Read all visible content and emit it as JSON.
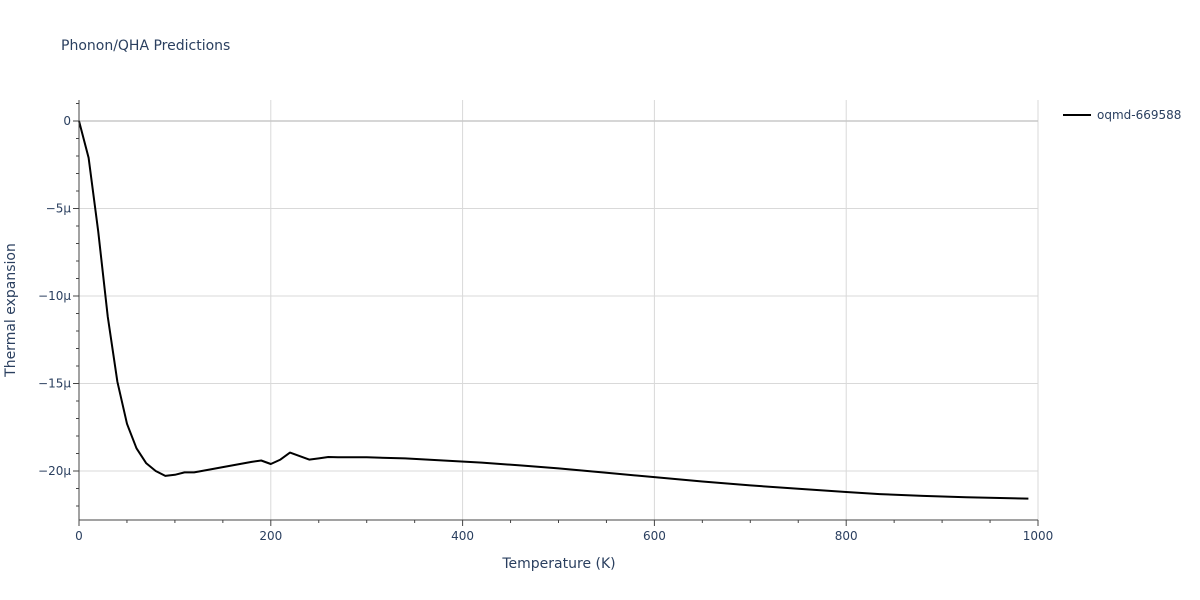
{
  "chart_data": {
    "type": "line",
    "title": "Phonon/QHA Predictions",
    "xlabel": "Temperature (K)",
    "ylabel": "Thermal expansion",
    "xlim": [
      0,
      1000
    ],
    "ylim": [
      -22.8,
      1.2
    ],
    "y_unit_scale": "μ (1e-6)",
    "x_ticks": [
      0,
      200,
      400,
      600,
      800,
      1000
    ],
    "x_tick_labels": [
      "0",
      "200",
      "400",
      "600",
      "800",
      "1000"
    ],
    "y_ticks": [
      0,
      -5,
      -10,
      -15,
      -20
    ],
    "y_tick_labels": [
      "0",
      "−5μ",
      "−10μ",
      "−15μ",
      "−20μ"
    ],
    "grid": true,
    "legend_position": "top-right",
    "series": [
      {
        "name": "oqmd-669588",
        "color": "#000000",
        "x": [
          0,
          10,
          20,
          30,
          40,
          50,
          60,
          70,
          80,
          90,
          100,
          110,
          120,
          130,
          140,
          150,
          160,
          170,
          180,
          190,
          200,
          210,
          220,
          230,
          240,
          250,
          260,
          270,
          280,
          290,
          300,
          340,
          380,
          420,
          460,
          500,
          550,
          600,
          650,
          700,
          750,
          800,
          835,
          880,
          925,
          990
        ],
        "y": [
          0,
          -2.1,
          -6.3,
          -11.2,
          -14.9,
          -17.3,
          -18.7,
          -19.55,
          -20.0,
          -20.28,
          -20.22,
          -20.08,
          -20.08,
          -19.98,
          -19.88,
          -19.78,
          -19.68,
          -19.58,
          -19.48,
          -19.4,
          -19.6,
          -19.35,
          -18.95,
          -19.15,
          -19.35,
          -19.28,
          -19.2,
          -19.22,
          -19.22,
          -19.22,
          -19.22,
          -19.28,
          -19.4,
          -19.52,
          -19.68,
          -19.85,
          -20.1,
          -20.35,
          -20.6,
          -20.82,
          -21.02,
          -21.2,
          -21.32,
          -21.42,
          -21.5,
          -21.58
        ]
      }
    ]
  }
}
